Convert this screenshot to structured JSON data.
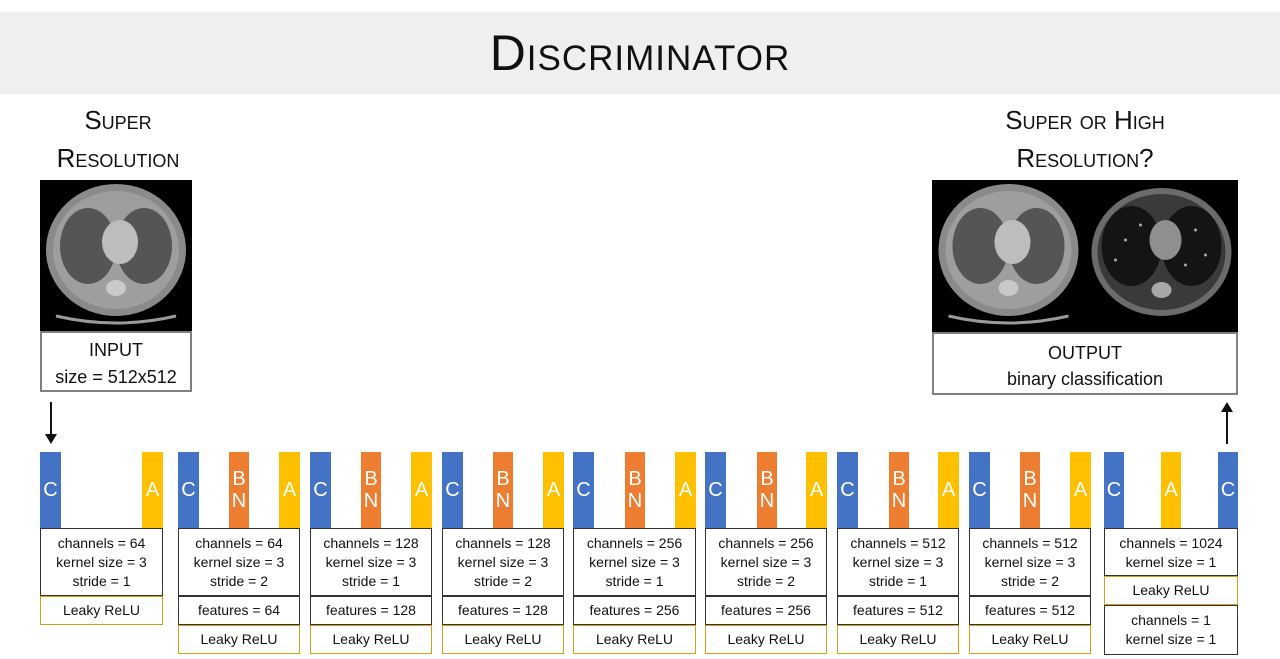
{
  "title": "Discriminator",
  "input": {
    "heading": [
      "Super",
      "Resolution"
    ],
    "label": "INPUT",
    "size": "size = 512x512"
  },
  "output": {
    "heading": [
      "Super or High",
      "Resolution?"
    ],
    "label": "OUTPUT",
    "desc": "binary classification"
  },
  "layers": [
    {
      "blocks": [
        "C",
        "A"
      ],
      "params": [
        "channels = 64",
        "kernel size = 3",
        "stride = 1"
      ],
      "act": "Leaky ReLU"
    },
    {
      "blocks": [
        "C",
        "BN",
        "A"
      ],
      "params": [
        "channels = 64",
        "kernel size = 3",
        "stride = 2"
      ],
      "features": "features = 64",
      "act": "Leaky ReLU"
    },
    {
      "blocks": [
        "C",
        "BN",
        "A"
      ],
      "params": [
        "channels = 128",
        "kernel size = 3",
        "stride = 1"
      ],
      "features": "features = 128",
      "act": "Leaky ReLU"
    },
    {
      "blocks": [
        "C",
        "BN",
        "A"
      ],
      "params": [
        "channels = 128",
        "kernel size = 3",
        "stride = 2"
      ],
      "features": "features = 128",
      "act": "Leaky ReLU"
    },
    {
      "blocks": [
        "C",
        "BN",
        "A"
      ],
      "params": [
        "channels = 256",
        "kernel size = 3",
        "stride = 1"
      ],
      "features": "features = 256",
      "act": "Leaky ReLU"
    },
    {
      "blocks": [
        "C",
        "BN",
        "A"
      ],
      "params": [
        "channels = 256",
        "kernel size = 3",
        "stride = 2"
      ],
      "features": "features = 256",
      "act": "Leaky ReLU"
    },
    {
      "blocks": [
        "C",
        "BN",
        "A"
      ],
      "params": [
        "channels = 512",
        "kernel size = 3",
        "stride = 1"
      ],
      "features": "features = 512",
      "act": "Leaky ReLU"
    },
    {
      "blocks": [
        "C",
        "BN",
        "A"
      ],
      "params": [
        "channels = 512",
        "kernel size = 3",
        "stride = 2"
      ],
      "features": "features = 512",
      "act": "Leaky ReLU"
    },
    {
      "blocks": [
        "C",
        "A",
        "C"
      ],
      "params": [
        "channels = 1024",
        "kernel size = 1"
      ],
      "act": "Leaky ReLU",
      "params2": [
        "channels = 1",
        "kernel size = 1"
      ]
    }
  ],
  "colors": {
    "conv": "#4472c4",
    "batchnorm": "#ed7d31",
    "activation": "#ffc000",
    "banner": "#efefef"
  }
}
